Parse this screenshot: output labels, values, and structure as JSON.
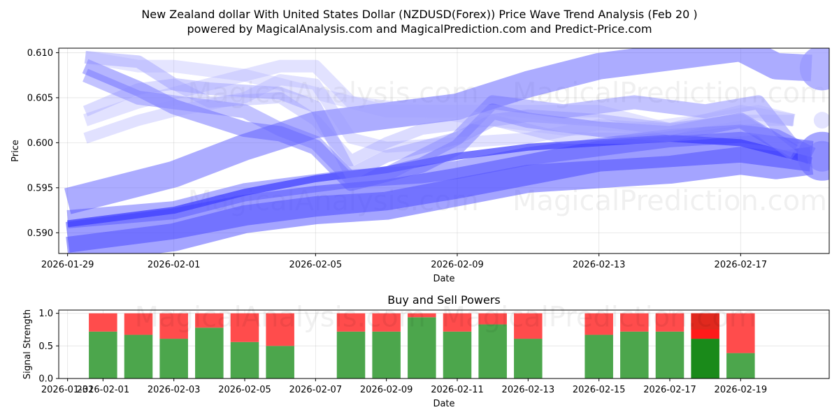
{
  "chart_data": [
    {
      "id": "price",
      "type": "line",
      "title_lines": [
        "New Zealand dollar With United States Dollar (NZDUSD(Forex)) Price Wave Trend Analysis (Feb 20 )",
        "powered by MagicalAnalysis.com and MagicalPrediction.com and Predict-Price.com"
      ],
      "xlabel": "Date",
      "ylabel": "Price",
      "x_domain_days": [
        -0.25,
        21.5
      ],
      "x_origin": "2026-01-29",
      "ylim": [
        0.5877,
        0.6105
      ],
      "x_ticks": [
        {
          "day": 0,
          "label": "2026-01-29"
        },
        {
          "day": 3,
          "label": "2026-02-01"
        },
        {
          "day": 7,
          "label": "2026-02-05"
        },
        {
          "day": 11,
          "label": "2026-02-09"
        },
        {
          "day": 15,
          "label": "2026-02-13"
        },
        {
          "day": 19,
          "label": "2026-02-17"
        }
      ],
      "y_ticks": [
        0.59,
        0.595,
        0.6,
        0.605,
        0.61
      ],
      "y_tick_labels": [
        "0.590",
        "0.595",
        "0.600",
        "0.605",
        "0.610"
      ],
      "bands": [
        {
          "color": "#5a5aff",
          "opacity": 0.5,
          "width": 38,
          "points": [
            [
              0,
              0.5935
            ],
            [
              3,
              0.5965
            ],
            [
              5,
              0.5995
            ],
            [
              7,
              0.602
            ],
            [
              9,
              0.603
            ],
            [
              11,
              0.604
            ],
            [
              13,
              0.6065
            ],
            [
              15,
              0.6085
            ],
            [
              17,
              0.6095
            ],
            [
              19,
              0.6105
            ],
            [
              20,
              0.6085
            ],
            [
              21,
              0.6083
            ]
          ]
        },
        {
          "color": "#4a4aff",
          "opacity": 0.55,
          "width": 44,
          "points": [
            [
              0,
              0.5895
            ],
            [
              3,
              0.591
            ],
            [
              5,
              0.5925
            ],
            [
              7,
              0.5935
            ],
            [
              9,
              0.5942
            ],
            [
              11,
              0.5955
            ],
            [
              13,
              0.597
            ],
            [
              15,
              0.5985
            ],
            [
              17,
              0.599
            ],
            [
              19,
              0.5995
            ],
            [
              20,
              0.599
            ],
            [
              21,
              0.5985
            ]
          ]
        },
        {
          "color": "#4a4aff",
          "opacity": 0.5,
          "width": 40,
          "points": [
            [
              0,
              0.588
            ],
            [
              3,
              0.5895
            ],
            [
              5,
              0.5915
            ],
            [
              7,
              0.5925
            ],
            [
              9,
              0.593
            ],
            [
              11,
              0.5945
            ],
            [
              13,
              0.596
            ],
            [
              15,
              0.5965
            ],
            [
              17,
              0.597
            ],
            [
              19,
              0.598
            ],
            [
              20,
              0.5975
            ],
            [
              21,
              0.598
            ]
          ]
        },
        {
          "color": "#5050ff",
          "opacity": 0.45,
          "width": 26,
          "points": [
            [
              0,
              0.5915
            ],
            [
              3,
              0.5925
            ],
            [
              5,
              0.5945
            ],
            [
              7,
              0.5955
            ],
            [
              8,
              0.596
            ],
            [
              10,
              0.5965
            ],
            [
              11,
              0.597
            ],
            [
              13,
              0.5985
            ],
            [
              15,
              0.5995
            ],
            [
              17,
              0.6005
            ],
            [
              19,
              0.601
            ],
            [
              20,
              0.6005
            ],
            [
              21,
              0.5985
            ]
          ]
        },
        {
          "color": "#3a3aff",
          "opacity": 0.7,
          "width": 10,
          "points": [
            [
              0,
              0.591
            ],
            [
              3,
              0.5925
            ],
            [
              5,
              0.5945
            ],
            [
              7,
              0.596
            ],
            [
              9,
              0.597
            ],
            [
              11,
              0.5985
            ],
            [
              13,
              0.5995
            ],
            [
              15,
              0.6
            ],
            [
              17,
              0.6005
            ],
            [
              19,
              0.6
            ],
            [
              21,
              0.598
            ]
          ]
        },
        {
          "color": "#5a5aff",
          "opacity": 0.45,
          "width": 22,
          "points": [
            [
              0.5,
              0.6085
            ],
            [
              2,
              0.606
            ],
            [
              3,
              0.604
            ],
            [
              5,
              0.6015
            ],
            [
              6,
              0.601
            ],
            [
              7,
              0.5995
            ],
            [
              8,
              0.5955
            ],
            [
              9,
              0.5965
            ],
            [
              10,
              0.5975
            ],
            [
              11,
              0.5995
            ],
            [
              12,
              0.6035
            ],
            [
              13,
              0.6025
            ],
            [
              15,
              0.6015
            ],
            [
              17,
              0.601
            ],
            [
              19,
              0.6025
            ],
            [
              20.5,
              0.599
            ]
          ]
        },
        {
          "color": "#6a6aff",
          "opacity": 0.4,
          "width": 20,
          "points": [
            [
              0.5,
              0.6075
            ],
            [
              2,
              0.605
            ],
            [
              3,
              0.6045
            ],
            [
              5,
              0.6035
            ],
            [
              6,
              0.6015
            ],
            [
              7,
              0.6
            ],
            [
              8,
              0.596
            ],
            [
              9,
              0.5965
            ],
            [
              10,
              0.5985
            ],
            [
              11,
              0.6005
            ],
            [
              12,
              0.6045
            ],
            [
              13,
              0.604
            ],
            [
              14,
              0.6035
            ],
            [
              16,
              0.6045
            ],
            [
              18,
              0.6035
            ],
            [
              19.5,
              0.6045
            ],
            [
              20.5,
              0.5995
            ]
          ]
        },
        {
          "color": "#7a7aff",
          "opacity": 0.35,
          "width": 18,
          "points": [
            [
              0.5,
              0.6095
            ],
            [
              2,
              0.609
            ],
            [
              3,
              0.6065
            ],
            [
              4,
              0.606
            ],
            [
              6,
              0.6055
            ],
            [
              7,
              0.604
            ],
            [
              8,
              0.5965
            ],
            [
              9,
              0.5985
            ],
            [
              11,
              0.6005
            ],
            [
              12,
              0.6025
            ],
            [
              13,
              0.603
            ],
            [
              15,
              0.6025
            ],
            [
              17,
              0.6015
            ],
            [
              19,
              0.6025
            ],
            [
              20.5,
              0.599
            ]
          ]
        },
        {
          "color": "#8a8aff",
          "opacity": 0.3,
          "width": 16,
          "points": [
            [
              0.5,
              0.6035
            ],
            [
              2,
              0.606
            ],
            [
              3,
              0.6065
            ],
            [
              4,
              0.6045
            ],
            [
              6,
              0.605
            ],
            [
              7,
              0.6025
            ],
            [
              8,
              0.598
            ],
            [
              9,
              0.6
            ],
            [
              10,
              0.6015
            ],
            [
              12,
              0.6025
            ],
            [
              14,
              0.6005
            ],
            [
              16,
              0.6005
            ],
            [
              18,
              0.601
            ],
            [
              19.5,
              0.6015
            ],
            [
              20.5,
              0.5985
            ]
          ]
        },
        {
          "color": "#9a9aff",
          "opacity": 0.3,
          "width": 16,
          "points": [
            [
              0.5,
              0.6005
            ],
            [
              2,
              0.6025
            ],
            [
              3,
              0.6035
            ],
            [
              5,
              0.605
            ],
            [
              6,
              0.607
            ],
            [
              7,
              0.6065
            ],
            [
              8,
              0.6005
            ],
            [
              9,
              0.5995
            ],
            [
              11,
              0.6
            ],
            [
              13,
              0.6005
            ],
            [
              15,
              0.602
            ],
            [
              17,
              0.6015
            ],
            [
              19,
              0.6025
            ],
            [
              20.5,
              0.6025
            ]
          ]
        },
        {
          "color": "#a0a0ff",
          "opacity": 0.3,
          "width": 18,
          "points": [
            [
              0.5,
              0.6025
            ],
            [
              2,
              0.6045
            ],
            [
              3,
              0.6055
            ],
            [
              5,
              0.6075
            ],
            [
              6,
              0.6085
            ],
            [
              7,
              0.6085
            ],
            [
              8,
              0.6045
            ],
            [
              9,
              0.6035
            ],
            [
              11,
              0.6035
            ],
            [
              13,
              0.6035
            ],
            [
              15,
              0.6035
            ],
            [
              17,
              0.6015
            ],
            [
              19,
              0.6035
            ],
            [
              20.5,
              0.6025
            ]
          ]
        },
        {
          "color": "#a8a8ff",
          "opacity": 0.3,
          "width": 18,
          "points": [
            [
              0.5,
              0.6095
            ],
            [
              2,
              0.6085
            ],
            [
              3,
              0.6085
            ],
            [
              5,
              0.6075
            ],
            [
              7,
              0.6055
            ],
            [
              8,
              0.6045
            ],
            [
              10,
              0.6035
            ],
            [
              12,
              0.6025
            ],
            [
              14,
              0.6015
            ],
            [
              16,
              0.6015
            ],
            [
              18,
              0.6025
            ],
            [
              19.5,
              0.6035
            ],
            [
              20.5,
              0.6025
            ]
          ]
        }
      ],
      "end_markers": [
        {
          "day": 21.3,
          "value": 0.6083,
          "size": 64,
          "color": "#9a9aff",
          "opacity": 0.75
        },
        {
          "day": 21.3,
          "value": 0.5985,
          "size": 70,
          "color": "#6a6aff",
          "opacity": 0.6
        },
        {
          "day": 21.3,
          "value": 0.5985,
          "size": 44,
          "color": "#6a6aff",
          "opacity": 0.4
        },
        {
          "day": 21.3,
          "value": 0.6025,
          "size": 24,
          "color": "#b0b0ff",
          "opacity": 0.35
        }
      ],
      "watermarks": [
        {
          "text": "MagicalAnalysis.com",
          "day": 7.5,
          "value": 0.6045
        },
        {
          "text": "MagicalPrediction.com",
          "day": 17,
          "value": 0.6045
        },
        {
          "text": "MagicalAnalysis.com",
          "day": 7.5,
          "value": 0.5925
        },
        {
          "text": "MagicalPrediction.com",
          "day": 17,
          "value": 0.5925
        }
      ]
    },
    {
      "id": "powers",
      "type": "bar",
      "title": "Buy and Sell Powers",
      "xlabel": "Date",
      "ylabel": "Signal Strength",
      "x_domain_days": [
        -0.25,
        21.5
      ],
      "x_origin": "2026-01-31",
      "ylim": [
        0,
        1.05
      ],
      "x_ticks": [
        {
          "day": 0,
          "label": "2026-01-31"
        },
        {
          "day": 1,
          "label": "2026-02-01"
        },
        {
          "day": 3,
          "label": "2026-02-03"
        },
        {
          "day": 5,
          "label": "2026-02-05"
        },
        {
          "day": 7,
          "label": "2026-02-07"
        },
        {
          "day": 9,
          "label": "2026-02-09"
        },
        {
          "day": 11,
          "label": "2026-02-11"
        },
        {
          "day": 13,
          "label": "2026-02-13"
        },
        {
          "day": 15,
          "label": "2026-02-15"
        },
        {
          "day": 17,
          "label": "2026-02-17"
        },
        {
          "day": 19,
          "label": "2026-02-19"
        }
      ],
      "y_ticks": [
        0.0,
        0.5,
        1.0
      ],
      "y_tick_labels": [
        "0.0",
        "0.5",
        "1.0"
      ],
      "buy_color": "#4ca64c",
      "sell_color": "#ff4c4c",
      "highlight_buy_color": "#1a8a1a",
      "highlight_sell_color": "#ff1a1a",
      "bars": [
        {
          "date": "2026-02-01",
          "day": 1,
          "buy": 0.72,
          "sell": 0.28
        },
        {
          "date": "2026-02-02",
          "day": 2,
          "buy": 0.67,
          "sell": 0.33
        },
        {
          "date": "2026-02-03",
          "day": 3,
          "buy": 0.61,
          "sell": 0.39
        },
        {
          "date": "2026-02-04",
          "day": 4,
          "buy": 0.78,
          "sell": 0.22
        },
        {
          "date": "2026-02-05",
          "day": 5,
          "buy": 0.56,
          "sell": 0.44
        },
        {
          "date": "2026-02-06",
          "day": 6,
          "buy": 0.5,
          "sell": 0.5
        },
        {
          "date": "2026-02-08",
          "day": 8,
          "buy": 0.72,
          "sell": 0.28
        },
        {
          "date": "2026-02-09",
          "day": 9,
          "buy": 0.72,
          "sell": 0.28
        },
        {
          "date": "2026-02-10",
          "day": 10,
          "buy": 0.94,
          "sell": 0.06
        },
        {
          "date": "2026-02-11",
          "day": 11,
          "buy": 0.72,
          "sell": 0.28
        },
        {
          "date": "2026-02-12",
          "day": 12,
          "buy": 0.83,
          "sell": 0.17
        },
        {
          "date": "2026-02-13",
          "day": 13,
          "buy": 0.61,
          "sell": 0.39
        },
        {
          "date": "2026-02-15",
          "day": 15,
          "buy": 0.67,
          "sell": 0.33
        },
        {
          "date": "2026-02-16",
          "day": 16,
          "buy": 0.72,
          "sell": 0.28
        },
        {
          "date": "2026-02-17",
          "day": 17,
          "buy": 0.72,
          "sell": 0.28
        },
        {
          "date": "2026-02-18",
          "day": 18,
          "buy": 0.61,
          "sell": 0.39,
          "highlight": true
        },
        {
          "date": "2026-02-19",
          "day": 19,
          "buy": 0.39,
          "sell": 0.61
        }
      ],
      "watermarks": [
        {
          "text": "MagicalAnalysis.com",
          "day": 6,
          "value": 0.95
        },
        {
          "text": "MagicalPrediction.com",
          "day": 15,
          "value": 0.95
        }
      ]
    }
  ]
}
